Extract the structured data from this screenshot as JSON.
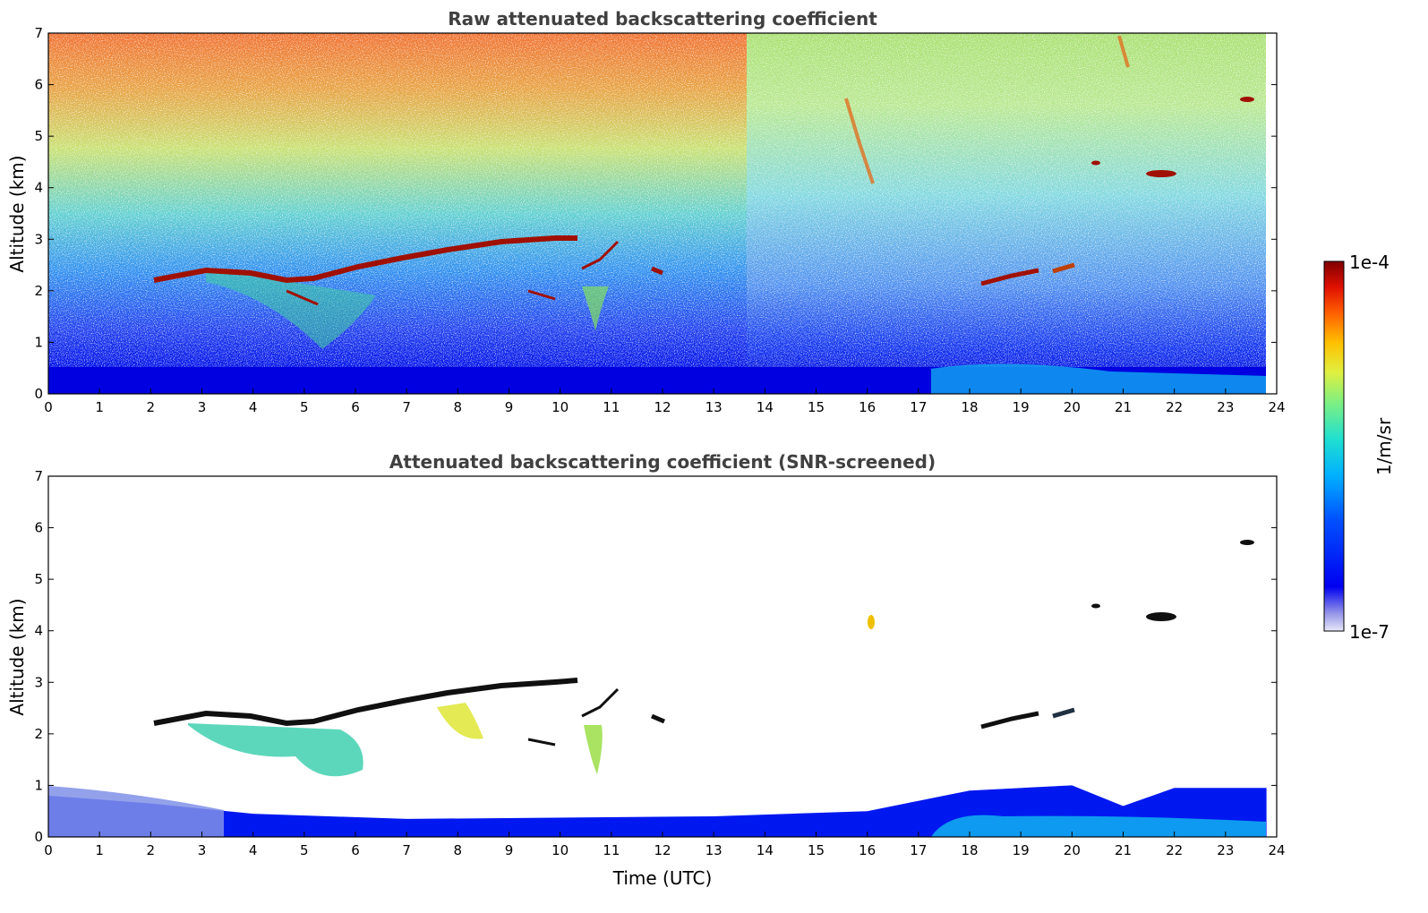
{
  "chart_data": [
    {
      "type": "heatmap",
      "title": "Raw attenuated backscattering coefficient",
      "xlabel": "",
      "ylabel": "Altitude (km)",
      "xlim": [
        0,
        24
      ],
      "ylim": [
        0,
        7
      ],
      "xticks": [
        "0",
        "1",
        "2",
        "3",
        "4",
        "5",
        "6",
        "7",
        "8",
        "9",
        "10",
        "11",
        "12",
        "13",
        "14",
        "15",
        "16",
        "17",
        "18",
        "19",
        "20",
        "21",
        "22",
        "23",
        "24"
      ],
      "yticks": [
        "0",
        "1",
        "2",
        "3",
        "4",
        "5",
        "6",
        "7"
      ],
      "features": [
        {
          "name": "cloud layer",
          "time_start": 2.1,
          "time_end": 10.3,
          "altitude_km": [
            2.2,
            2.4,
            2.25,
            2.2,
            2.6,
            2.8,
            2.95,
            3.05
          ]
        },
        {
          "name": "elevated cloud",
          "time": 21.8,
          "altitude_km": 4.3
        },
        {
          "name": "elevated cloud",
          "time": 23.4,
          "altitude_km": 5.7
        },
        {
          "name": "elevated cloud",
          "time": 20.5,
          "altitude_km": 4.5
        },
        {
          "name": "cloud layer",
          "time_start": 18.2,
          "time_end": 20.1,
          "altitude_km": [
            2.1,
            2.4
          ]
        }
      ]
    },
    {
      "type": "heatmap",
      "title": "Attenuated backscattering coefficient (SNR-screened)",
      "xlabel": "Time (UTC)",
      "ylabel": "Altitude (km)",
      "xlim": [
        0,
        24
      ],
      "ylim": [
        0,
        7
      ],
      "xticks": [
        "0",
        "1",
        "2",
        "3",
        "4",
        "5",
        "6",
        "7",
        "8",
        "9",
        "10",
        "11",
        "12",
        "13",
        "14",
        "15",
        "16",
        "17",
        "18",
        "19",
        "20",
        "21",
        "22",
        "23",
        "24"
      ],
      "yticks": [
        "0",
        "1",
        "2",
        "3",
        "4",
        "5",
        "6",
        "7"
      ],
      "boundary_layer_top_km": [
        [
          0,
          0.8
        ],
        [
          2,
          0.65
        ],
        [
          4,
          0.45
        ],
        [
          7,
          0.35
        ],
        [
          13,
          0.4
        ],
        [
          16,
          0.5
        ],
        [
          17,
          0.7
        ],
        [
          18,
          0.9
        ],
        [
          20,
          1.0
        ],
        [
          21,
          0.6
        ],
        [
          22,
          0.95
        ],
        [
          23.8,
          0.95
        ]
      ]
    }
  ],
  "colorbar": {
    "label": "1/m/sr",
    "max_label": "1e-4",
    "min_label": "1e-7",
    "colors": [
      "#e8e8f8",
      "#c8c8f0",
      "#9090e8",
      "#0000f0",
      "#0050ff",
      "#00b0ff",
      "#20e0d0",
      "#80f080",
      "#e0f040",
      "#ffc000",
      "#ff6000",
      "#e01000",
      "#800000"
    ]
  }
}
